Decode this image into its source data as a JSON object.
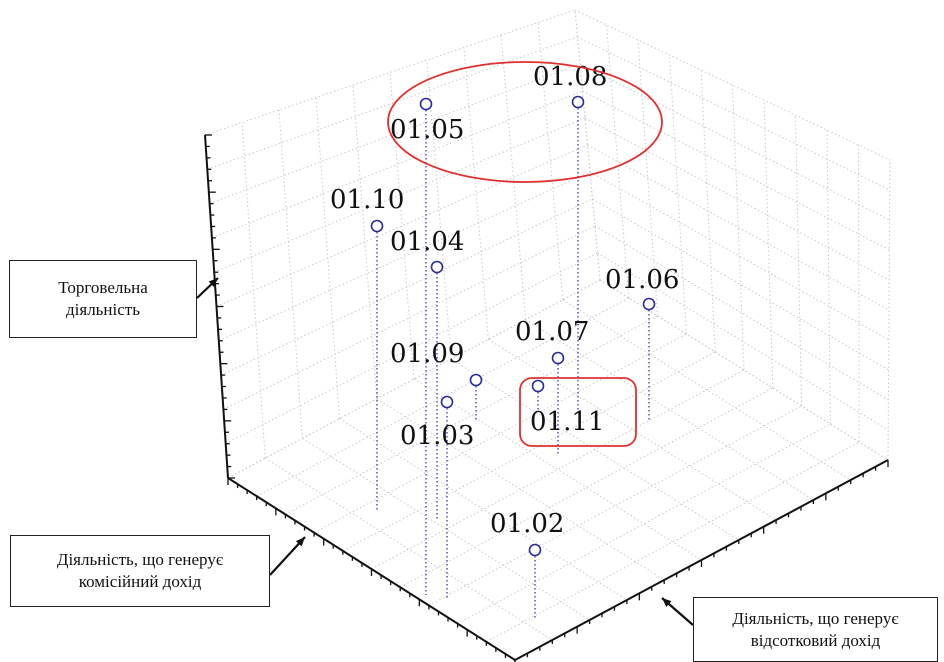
{
  "chart_data": {
    "type": "scatter",
    "projection": "3d",
    "title": "",
    "axes": {
      "vertical": "Торговельна діяльність",
      "left": "Діяльність, що генерує комісійний дохід",
      "right": "Діяльність, що генерує відсотковий дохід"
    },
    "grid": true,
    "series": [
      {
        "marker": "hollow-circle",
        "color": "#2a2a9a",
        "points": [
          {
            "label": "01.02"
          },
          {
            "label": "01.03"
          },
          {
            "label": "01.04"
          },
          {
            "label": "01.05"
          },
          {
            "label": "01.06"
          },
          {
            "label": "01.07"
          },
          {
            "label": "01.08"
          },
          {
            "label": "01.09"
          },
          {
            "label": "01.10"
          },
          {
            "label": "01.11"
          }
        ]
      }
    ],
    "highlight_groups": [
      {
        "shape": "ellipse",
        "color": "#e03030",
        "members": [
          "01.05",
          "01.08"
        ]
      },
      {
        "shape": "rounded-rect",
        "color": "#e03030",
        "members": [
          "01.11"
        ]
      }
    ]
  }
}
